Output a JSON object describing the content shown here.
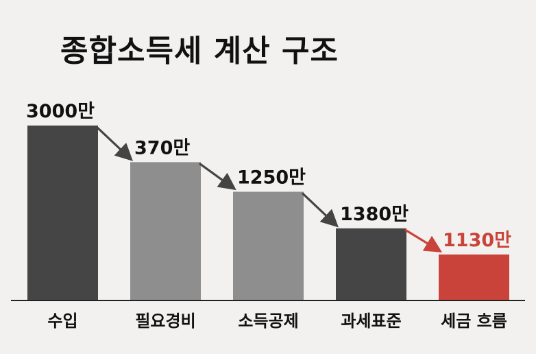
{
  "chart_data": {
    "type": "bar",
    "title": "종합소득세 계산 구조",
    "categories": [
      "수입",
      "필요경비",
      "소득공제",
      "과세표준",
      "세금 흐름"
    ],
    "values": [
      3000,
      370,
      1250,
      1380,
      1130
    ],
    "value_labels": [
      "3000만",
      "370만",
      "1250만",
      "1380만",
      "1130만"
    ],
    "colors": [
      "#454545",
      "#8e8e8e",
      "#8e8e8e",
      "#454545",
      "#c9433a"
    ],
    "label_colors": [
      "#111111",
      "#111111",
      "#111111",
      "#111111",
      "#c9433a"
    ],
    "arrow_colors": [
      "#444444",
      "#444444",
      "#444444",
      "#c9433a"
    ],
    "grid": false,
    "legend": "none"
  }
}
